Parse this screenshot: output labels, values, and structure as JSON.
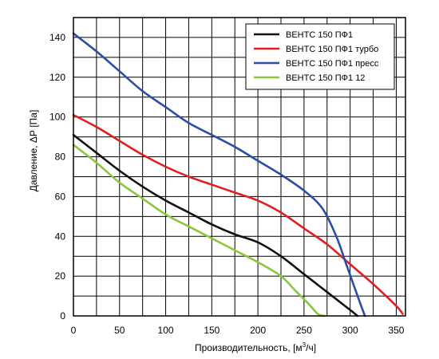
{
  "chart_data": {
    "type": "line",
    "title": "",
    "xlabel": "Производительность, [м",
    "xlabel_sup": "3",
    "xlabel_tail": "/ч]",
    "ylabel": "Давление, ΔР [Па]",
    "xlim": [
      0,
      360
    ],
    "ylim": [
      0,
      150
    ],
    "xticks": [
      0,
      50,
      100,
      150,
      200,
      250,
      300,
      350
    ],
    "yticks": [
      0,
      20,
      40,
      60,
      80,
      100,
      120,
      140
    ],
    "x_grid_step": 25,
    "y_grid_step": 10,
    "grid": true,
    "legend_position": "top-right",
    "series": [
      {
        "name": "ВЕНТС 150 ПФ1",
        "color": "#111111",
        "x": [
          0,
          25,
          50,
          75,
          100,
          125,
          150,
          175,
          200,
          225,
          250,
          275,
          300,
          308
        ],
        "y": [
          91,
          82,
          73,
          65,
          58,
          52,
          46,
          41,
          37,
          30,
          21,
          12,
          3,
          0
        ]
      },
      {
        "name": "ВЕНТС 150 ПФ1 турбо",
        "color": "#e02020",
        "x": [
          0,
          25,
          50,
          75,
          100,
          125,
          150,
          175,
          200,
          225,
          250,
          275,
          300,
          325,
          350,
          357
        ],
        "y": [
          101,
          95,
          88,
          81,
          75,
          70,
          66,
          62,
          58,
          52,
          44,
          36,
          26,
          16,
          5,
          1
        ]
      },
      {
        "name": "ВЕНТС 150 ПФ1 пресс",
        "color": "#2a4fa5",
        "x": [
          0,
          25,
          50,
          75,
          100,
          125,
          150,
          175,
          200,
          225,
          250,
          270,
          285,
          295,
          305,
          312,
          316
        ],
        "y": [
          142,
          133,
          123,
          113,
          105,
          97,
          91,
          85,
          78,
          71,
          63,
          54,
          40,
          27,
          14,
          5,
          0
        ]
      },
      {
        "name": "ВЕНТС 150 ПФ1 12",
        "color": "#8cc63f",
        "x": [
          0,
          25,
          50,
          75,
          100,
          125,
          150,
          175,
          200,
          225,
          240,
          255,
          265,
          272
        ],
        "y": [
          86,
          77,
          67,
          59,
          51,
          45,
          39,
          33,
          27,
          20,
          13,
          6,
          1,
          0
        ]
      }
    ]
  }
}
